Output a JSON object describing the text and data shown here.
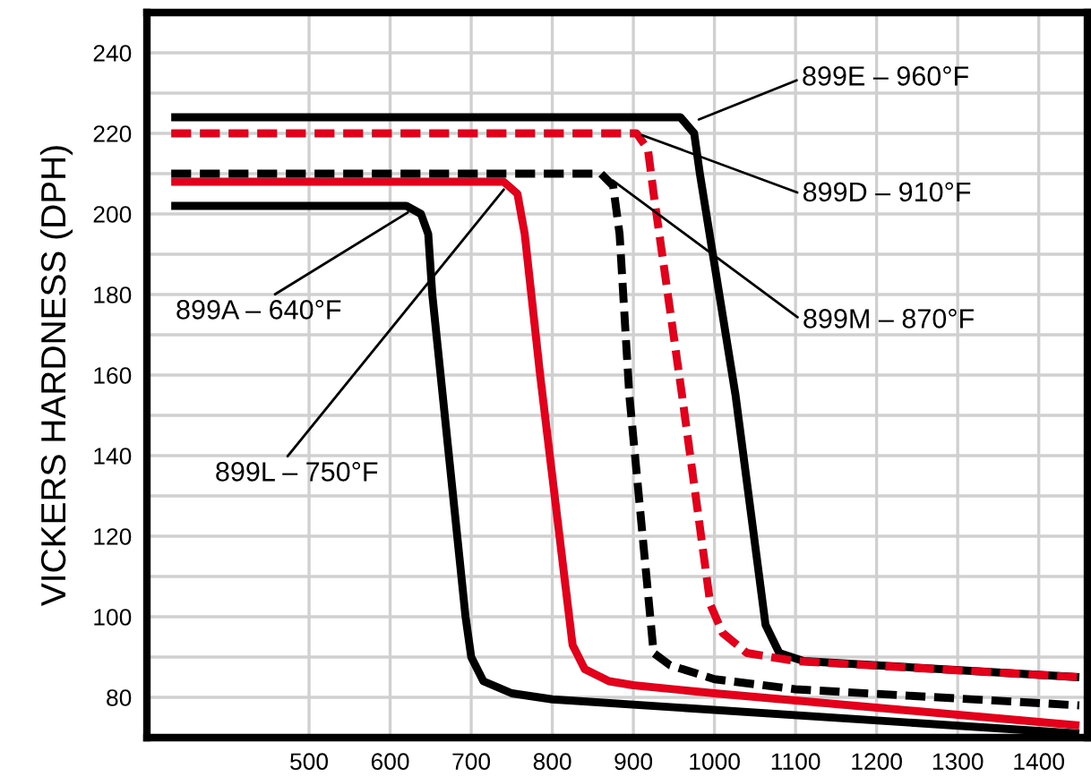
{
  "chart_data": {
    "type": "line",
    "ylabel": "VICKERS HARDNESS (DPH)",
    "xlim": [
      300,
      1460
    ],
    "ylim": [
      70,
      250
    ],
    "xticks": [
      500,
      600,
      700,
      800,
      900,
      1000,
      1100,
      1200,
      1300,
      1400
    ],
    "yticks": [
      80,
      {
        "value": 90,
        "label": null
      },
      100,
      {
        "value": 110,
        "label": null
      },
      120,
      {
        "value": 130,
        "label": null
      },
      140,
      {
        "value": 150,
        "label": null
      },
      160,
      {
        "value": 170,
        "label": null
      },
      180,
      {
        "value": 190,
        "label": null
      },
      200,
      {
        "value": 210,
        "label": null
      },
      220,
      {
        "value": 230,
        "label": null
      },
      240
    ],
    "grid": true,
    "marker": "none",
    "series": [
      {
        "color": "#000000",
        "line_style": "solid",
        "x": [
          330,
          620,
          638,
          647,
          652,
          693,
          700,
          715,
          750,
          800,
          1450
        ],
        "values": [
          202,
          202,
          200,
          195,
          180,
          100,
          90,
          84,
          81,
          79.5,
          71
        ]
      },
      {
        "color": "#e2001a",
        "line_style": "solid",
        "x": [
          330,
          740,
          757,
          766,
          785,
          825,
          840,
          870,
          900,
          1000,
          1450
        ],
        "values": [
          208,
          208,
          205,
          195,
          160,
          93,
          87,
          84,
          83,
          81,
          73
        ]
      },
      {
        "color": "#000000",
        "line_style": "dashed",
        "x": [
          330,
          860,
          875,
          883,
          895,
          925,
          945,
          1000,
          1100,
          1450
        ],
        "values": [
          210,
          210,
          207,
          195,
          155,
          91,
          88,
          84.5,
          82,
          78
        ]
      },
      {
        "color": "#e2001a",
        "line_style": "dashed",
        "x": [
          330,
          904,
          918,
          925,
          960,
          995,
          1010,
          1040,
          1100,
          1450
        ],
        "values": [
          220,
          220,
          216,
          205,
          155,
          103,
          96,
          91,
          89,
          85
        ]
      },
      {
        "color": "#000000",
        "line_style": "solid",
        "x": [
          330,
          958,
          975,
          982,
          1026,
          1063,
          1080,
          1110,
          1450
        ],
        "values": [
          224,
          224,
          220,
          210,
          155,
          98,
          91,
          89,
          85
        ]
      }
    ],
    "annotations": [
      {
        "text": "899E – 960°F",
        "x": 975,
        "y": 223
      },
      {
        "text": "899D – 910°F",
        "x": 905,
        "y": 220
      },
      {
        "text": "899M – 870°F",
        "x": 870,
        "y": 209
      },
      {
        "text": "899A – 640°F",
        "x": 627,
        "y": 201
      },
      {
        "text": "899L – 750°F",
        "x": 744,
        "y": 207
      }
    ]
  }
}
